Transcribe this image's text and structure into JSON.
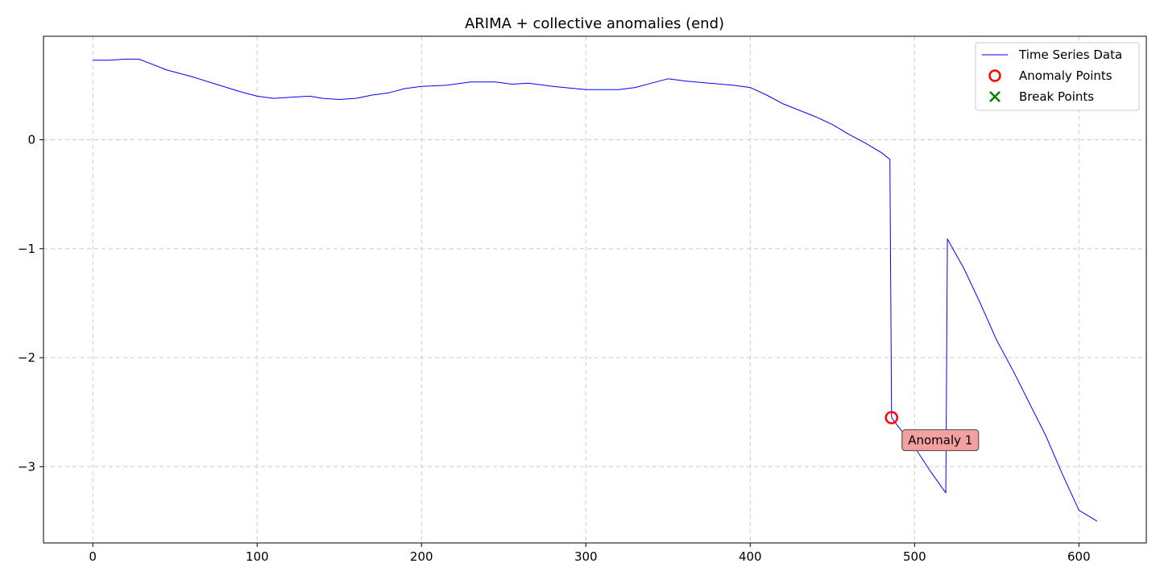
{
  "chart_data": {
    "type": "line",
    "title": "ARIMA + collective anomalies (end)",
    "xlabel": "",
    "ylabel": "",
    "xlim": [
      -30,
      641
    ],
    "ylim": [
      -3.7,
      0.95
    ],
    "x_ticks": [
      0,
      100,
      200,
      300,
      400,
      500,
      600
    ],
    "x_tick_labels": [
      "0",
      "100",
      "200",
      "300",
      "400",
      "500",
      "600"
    ],
    "y_ticks": [
      0,
      -1,
      -2,
      -3
    ],
    "y_tick_labels": [
      "0",
      "−1",
      "−2",
      "−3"
    ],
    "grid": true,
    "legend_position": "top-right",
    "legend": [
      {
        "label": "Time Series Data",
        "marker": "line",
        "color": "#0000ff"
      },
      {
        "label": "Anomaly Points",
        "marker": "circle",
        "color": "#ff0000"
      },
      {
        "label": "Break Points",
        "marker": "x",
        "color": "#008000"
      }
    ],
    "series": [
      {
        "name": "Time Series Data",
        "color": "#0000ff",
        "points": [
          [
            0,
            0.73
          ],
          [
            10,
            0.73
          ],
          [
            20,
            0.74
          ],
          [
            28,
            0.74
          ],
          [
            35,
            0.7
          ],
          [
            45,
            0.64
          ],
          [
            60,
            0.58
          ],
          [
            75,
            0.51
          ],
          [
            90,
            0.44
          ],
          [
            100,
            0.4
          ],
          [
            110,
            0.38
          ],
          [
            120,
            0.39
          ],
          [
            132,
            0.4
          ],
          [
            140,
            0.38
          ],
          [
            150,
            0.37
          ],
          [
            160,
            0.38
          ],
          [
            170,
            0.41
          ],
          [
            180,
            0.43
          ],
          [
            190,
            0.47
          ],
          [
            200,
            0.49
          ],
          [
            215,
            0.5
          ],
          [
            230,
            0.53
          ],
          [
            245,
            0.53
          ],
          [
            255,
            0.51
          ],
          [
            265,
            0.52
          ],
          [
            280,
            0.49
          ],
          [
            300,
            0.46
          ],
          [
            310,
            0.46
          ],
          [
            320,
            0.46
          ],
          [
            330,
            0.48
          ],
          [
            340,
            0.52
          ],
          [
            350,
            0.56
          ],
          [
            360,
            0.54
          ],
          [
            375,
            0.52
          ],
          [
            390,
            0.5
          ],
          [
            400,
            0.48
          ],
          [
            410,
            0.41
          ],
          [
            420,
            0.33
          ],
          [
            430,
            0.27
          ],
          [
            440,
            0.21
          ],
          [
            450,
            0.14
          ],
          [
            460,
            0.05
          ],
          [
            470,
            -0.03
          ],
          [
            480,
            -0.12
          ],
          [
            485,
            -0.18
          ],
          [
            486,
            -2.55
          ],
          [
            490,
            -2.63
          ],
          [
            500,
            -2.82
          ],
          [
            510,
            -3.05
          ],
          [
            519,
            -3.24
          ],
          [
            520,
            -0.91
          ],
          [
            530,
            -1.18
          ],
          [
            540,
            -1.5
          ],
          [
            550,
            -1.84
          ],
          [
            560,
            -2.12
          ],
          [
            570,
            -2.42
          ],
          [
            580,
            -2.72
          ],
          [
            590,
            -3.07
          ],
          [
            600,
            -3.4
          ],
          [
            611,
            -3.5
          ]
        ]
      }
    ],
    "anomaly_points": [
      {
        "x": 486,
        "y": -2.55,
        "label": "Anomaly 1"
      }
    ],
    "break_points": []
  }
}
